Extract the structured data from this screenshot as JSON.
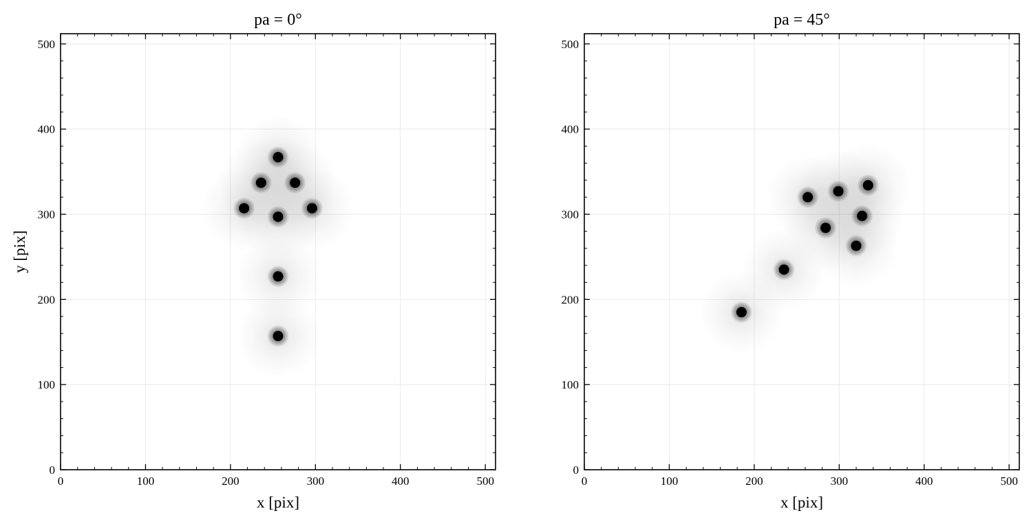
{
  "figure": {
    "background": "#ffffff"
  },
  "chart_data": [
    {
      "type": "scatter",
      "title": "pa = 0°",
      "xlabel": "x [pix]",
      "ylabel": "y [pix]",
      "xlim": [
        0,
        512
      ],
      "ylim": [
        0,
        512
      ],
      "xticks": [
        0,
        100,
        200,
        300,
        400,
        500
      ],
      "yticks": [
        0,
        100,
        200,
        300,
        400,
        500
      ],
      "tick_labels": [
        "0",
        "100",
        "200",
        "300",
        "400",
        "500"
      ],
      "grid": true,
      "marker": "gaussian-source",
      "color": "#000000",
      "points": [
        {
          "x": 256,
          "y": 367
        },
        {
          "x": 236,
          "y": 337
        },
        {
          "x": 276,
          "y": 337
        },
        {
          "x": 216,
          "y": 307
        },
        {
          "x": 296,
          "y": 307
        },
        {
          "x": 256,
          "y": 297
        },
        {
          "x": 256,
          "y": 227
        },
        {
          "x": 256,
          "y": 157
        }
      ]
    },
    {
      "type": "scatter",
      "title": "pa = 45°",
      "xlabel": "x [pix]",
      "ylabel": "",
      "xlim": [
        0,
        512
      ],
      "ylim": [
        0,
        512
      ],
      "xticks": [
        0,
        100,
        200,
        300,
        400,
        500
      ],
      "yticks": [
        0,
        100,
        200,
        300,
        400,
        500
      ],
      "tick_labels": [
        "0",
        "100",
        "200",
        "300",
        "400",
        "500"
      ],
      "grid": true,
      "marker": "gaussian-source",
      "color": "#000000",
      "points": [
        {
          "x": 334,
          "y": 334
        },
        {
          "x": 299,
          "y": 327
        },
        {
          "x": 263,
          "y": 320
        },
        {
          "x": 327,
          "y": 298
        },
        {
          "x": 284,
          "y": 284
        },
        {
          "x": 320,
          "y": 263
        },
        {
          "x": 235,
          "y": 235
        },
        {
          "x": 185,
          "y": 185
        }
      ]
    }
  ]
}
